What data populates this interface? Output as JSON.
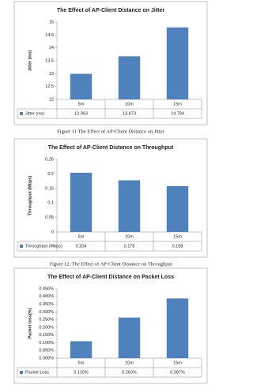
{
  "chart_data": [
    {
      "type": "bar",
      "title": "The Effect of AP-Client Distance on Jitter",
      "caption": "Figure 11 The Effect of AP-Client Distance on Jitter",
      "y_label": "Jitter (ms)",
      "categories": [
        "5m",
        "10m",
        "15m"
      ],
      "series": [
        {
          "name": "Jitter (ms)",
          "color": "#4f81bd",
          "values": [
            12.993,
            13.673,
            14.794
          ]
        }
      ],
      "ylim": [
        12,
        15
      ],
      "yticks": [
        12,
        12.5,
        13,
        13.5,
        14,
        14.5,
        15
      ]
    },
    {
      "type": "bar",
      "title": "The Effect of AP-Client Distance on Throughput",
      "caption": "Figure 12. The Effect of AP-Client Distance on Throughput",
      "y_label": "Throughput (Mbps)",
      "categories": [
        "5m",
        "10m",
        "15m"
      ],
      "series": [
        {
          "name": "Throughput (Mbps)",
          "color": "#4f81bd",
          "values": [
            0.204,
            0.178,
            0.158
          ]
        }
      ],
      "ylim": [
        0,
        0.25
      ],
      "yticks": [
        0,
        0.05,
        0.1,
        0.15,
        0.2,
        0.25
      ]
    },
    {
      "type": "bar",
      "title": "The Effect of AP-Client Distance on Packet Loss",
      "y_label": "Packet loss(%)",
      "categories": [
        "5m",
        "10m",
        "15m"
      ],
      "series": [
        {
          "name": "Packet Loss",
          "color": "#4f81bd",
          "values": [
            0.11,
            0.263,
            0.387
          ],
          "value_labels": [
            "0.110%",
            "0.263%",
            "0.387%"
          ]
        }
      ],
      "ylim": [
        0,
        0.45
      ],
      "yticks": [
        {
          "value": 0,
          "label": "0.000%"
        },
        {
          "value": 0.05,
          "label": "0.050%"
        },
        {
          "value": 0.1,
          "label": "0.100%"
        },
        {
          "value": 0.15,
          "label": "0.150%"
        },
        {
          "value": 0.2,
          "label": "0.200%"
        },
        {
          "value": 0.25,
          "label": "0.250%"
        },
        {
          "value": 0.3,
          "label": "0.300%"
        },
        {
          "value": 0.35,
          "label": "0.350%"
        },
        {
          "value": 0.4,
          "label": "0.400%"
        },
        {
          "value": 0.45,
          "label": "0.450%"
        }
      ]
    }
  ]
}
